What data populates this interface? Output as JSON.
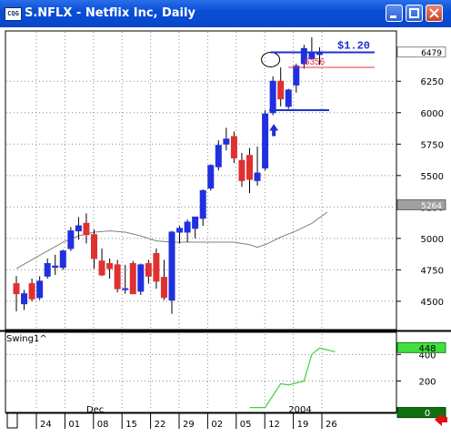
{
  "window": {
    "icon_label": "CQG",
    "title": "S.NFLX - Netflix Inc, Daily"
  },
  "chart_data": [
    {
      "type": "candlestick",
      "symbol": "S.NFLX",
      "ylim": [
        4275,
        6650
      ],
      "y_ticks": [
        4500,
        4750,
        5000,
        5250,
        5500,
        5750,
        6000,
        6250
      ],
      "last_price_label": "6479",
      "ma_label": "5264",
      "x_tick_labels": [
        "24",
        "01",
        "08",
        "15",
        "22",
        "29",
        "02",
        "05",
        "12",
        "19",
        "26"
      ],
      "month_labels": [
        {
          "text": "Dec",
          "slot": 9
        },
        {
          "text": "2004",
          "slot": 35
        }
      ],
      "candles": [
        {
          "o": 4640,
          "h": 4700,
          "l": 4420,
          "c": 4560
        },
        {
          "o": 4480,
          "h": 4590,
          "l": 4430,
          "c": 4560
        },
        {
          "o": 4640,
          "h": 4680,
          "l": 4500,
          "c": 4520
        },
        {
          "o": 4530,
          "h": 4700,
          "l": 4510,
          "c": 4660
        },
        {
          "o": 4700,
          "h": 4840,
          "l": 4680,
          "c": 4800
        },
        {
          "o": 4770,
          "h": 4870,
          "l": 4710,
          "c": 4780
        },
        {
          "o": 4770,
          "h": 4910,
          "l": 4750,
          "c": 4900
        },
        {
          "o": 4920,
          "h": 5090,
          "l": 4900,
          "c": 5060
        },
        {
          "o": 5060,
          "h": 5170,
          "l": 4990,
          "c": 5100
        },
        {
          "o": 5120,
          "h": 5200,
          "l": 4960,
          "c": 5030
        },
        {
          "o": 5030,
          "h": 5070,
          "l": 4760,
          "c": 4840
        },
        {
          "o": 4820,
          "h": 4920,
          "l": 4700,
          "c": 4710
        },
        {
          "o": 4800,
          "h": 4840,
          "l": 4680,
          "c": 4760
        },
        {
          "o": 4790,
          "h": 4830,
          "l": 4570,
          "c": 4600
        },
        {
          "o": 4600,
          "h": 4790,
          "l": 4560,
          "c": 4600
        },
        {
          "o": 4800,
          "h": 4820,
          "l": 4580,
          "c": 4560
        },
        {
          "o": 4580,
          "h": 4800,
          "l": 4550,
          "c": 4790
        },
        {
          "o": 4800,
          "h": 4830,
          "l": 4640,
          "c": 4700
        },
        {
          "o": 4880,
          "h": 4920,
          "l": 4600,
          "c": 4660
        },
        {
          "o": 4690,
          "h": 4830,
          "l": 4510,
          "c": 4530
        },
        {
          "o": 4510,
          "h": 5060,
          "l": 4400,
          "c": 5050
        },
        {
          "o": 5050,
          "h": 5100,
          "l": 4960,
          "c": 5080
        },
        {
          "o": 5050,
          "h": 5150,
          "l": 4970,
          "c": 5130
        },
        {
          "o": 5080,
          "h": 5170,
          "l": 5000,
          "c": 5170
        },
        {
          "o": 5160,
          "h": 5390,
          "l": 5100,
          "c": 5380
        },
        {
          "o": 5400,
          "h": 5590,
          "l": 5380,
          "c": 5580
        },
        {
          "o": 5570,
          "h": 5780,
          "l": 5540,
          "c": 5740
        },
        {
          "o": 5750,
          "h": 5880,
          "l": 5700,
          "c": 5790
        },
        {
          "o": 5810,
          "h": 5850,
          "l": 5600,
          "c": 5640
        },
        {
          "o": 5620,
          "h": 5680,
          "l": 5410,
          "c": 5460
        },
        {
          "o": 5660,
          "h": 5720,
          "l": 5360,
          "c": 5470
        },
        {
          "o": 5460,
          "h": 5730,
          "l": 5420,
          "c": 5520
        },
        {
          "o": 5560,
          "h": 6020,
          "l": 5540,
          "c": 5990
        },
        {
          "o": 6000,
          "h": 6290,
          "l": 5980,
          "c": 6250
        },
        {
          "o": 6250,
          "h": 6360,
          "l": 6050,
          "c": 6110
        },
        {
          "o": 6050,
          "h": 6190,
          "l": 6030,
          "c": 6180
        },
        {
          "o": 6220,
          "h": 6390,
          "l": 6160,
          "c": 6370
        },
        {
          "o": 6390,
          "h": 6540,
          "l": 6350,
          "c": 6510
        },
        {
          "o": 6430,
          "h": 6600,
          "l": 6420,
          "c": 6470
        },
        {
          "o": 6470,
          "h": 6520,
          "l": 6380,
          "c": 6470
        }
      ],
      "ma_points": [
        [
          0,
          4760
        ],
        [
          2,
          4830
        ],
        [
          4,
          4900
        ],
        [
          6,
          4970
        ],
        [
          8,
          5020
        ],
        [
          10,
          5050
        ],
        [
          12,
          5060
        ],
        [
          14,
          5050
        ],
        [
          16,
          5020
        ],
        [
          18,
          4980
        ],
        [
          20,
          4970
        ],
        [
          22,
          4970
        ],
        [
          24,
          4970
        ],
        [
          26,
          4970
        ],
        [
          28,
          4970
        ],
        [
          30,
          4950
        ],
        [
          31,
          4930
        ],
        [
          32,
          4950
        ],
        [
          34,
          5010
        ],
        [
          36,
          5060
        ],
        [
          38,
          5120
        ],
        [
          40,
          5210
        ]
      ],
      "annotations": {
        "target_text": "$1.20",
        "price_text": "6356",
        "blue_upper_line": 6480,
        "blue_lower_line": 6020,
        "red_line": 6360,
        "arrow_slot": 33
      }
    },
    {
      "type": "line",
      "indicator_label": "Swing1^",
      "y_ticks": [
        200,
        400
      ],
      "ylim": [
        -30,
        560
      ],
      "last_value_label": "448",
      "zero_label": "0",
      "points": [
        [
          30,
          0
        ],
        [
          32,
          0
        ],
        [
          34,
          180
        ],
        [
          35,
          170
        ],
        [
          37,
          200
        ],
        [
          38,
          400
        ],
        [
          39,
          448
        ],
        [
          41,
          420
        ]
      ]
    }
  ],
  "colors": {
    "up": "#2030e0",
    "down": "#e03030",
    "ma": "#808080",
    "indicator": "#40d040",
    "annot_blue": "#2030d0",
    "annot_red": "#e03040"
  }
}
